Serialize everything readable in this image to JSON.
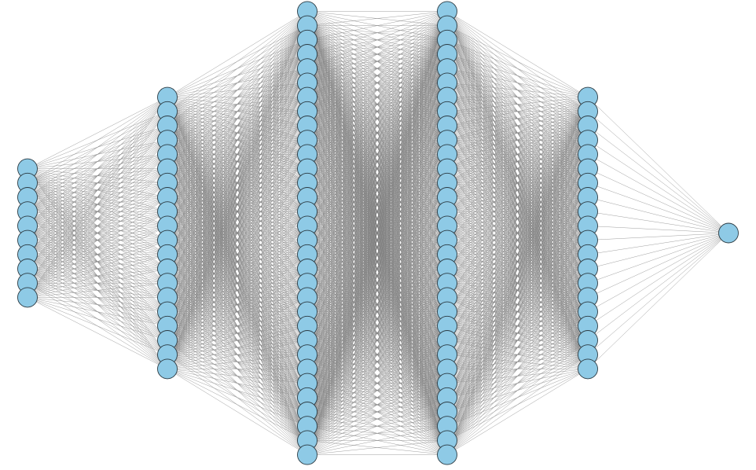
{
  "network": {
    "layers": [
      {
        "neurons": 10
      },
      {
        "neurons": 20
      },
      {
        "neurons": 32
      },
      {
        "neurons": 32
      },
      {
        "neurons": 20
      },
      {
        "neurons": 1
      }
    ],
    "colors": {
      "node_fill": "#8ecae6",
      "node_stroke": "#2b3a42",
      "edge": "#7f7f7f",
      "background": "#ffffff"
    }
  }
}
